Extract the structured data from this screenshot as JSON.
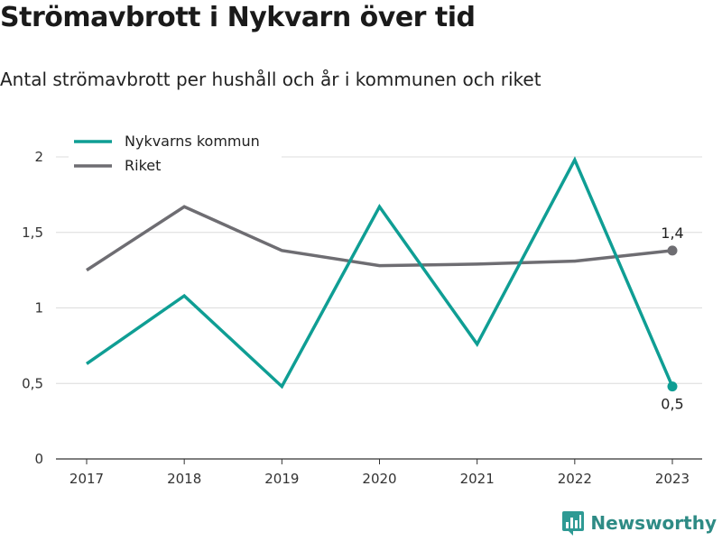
{
  "header": {
    "title": "Strömavbrott i Nykvarn över tid",
    "subtitle": "Antal strömavbrott per hushåll och år i kommunen och riket"
  },
  "brand": {
    "name": "Newsworthy",
    "icon": "bar-chart-logo-icon",
    "color": "#2e9a94"
  },
  "chart_data": {
    "type": "line",
    "title": "Strömavbrott i Nykvarn över tid",
    "subtitle": "Antal strömavbrott per hushåll och år i kommunen och riket",
    "x": [
      "2017",
      "2018",
      "2019",
      "2020",
      "2021",
      "2022",
      "2023"
    ],
    "ylim": [
      0,
      2.2
    ],
    "yticks": [
      0,
      0.5,
      1,
      1.5,
      2
    ],
    "ytick_labels": [
      "0",
      "0,5",
      "1",
      "1,5",
      "2"
    ],
    "grid": true,
    "legend_position": "top-left",
    "series": [
      {
        "name": "Nykvarns kommun",
        "color": "#0f9e94",
        "values": [
          0.63,
          1.08,
          0.48,
          1.67,
          0.76,
          1.98,
          0.48
        ],
        "end_label": "0,5"
      },
      {
        "name": "Riket",
        "color": "#6e6d72",
        "values": [
          1.25,
          1.67,
          1.38,
          1.28,
          1.29,
          1.31,
          1.38
        ],
        "end_label": "1,4"
      }
    ]
  }
}
